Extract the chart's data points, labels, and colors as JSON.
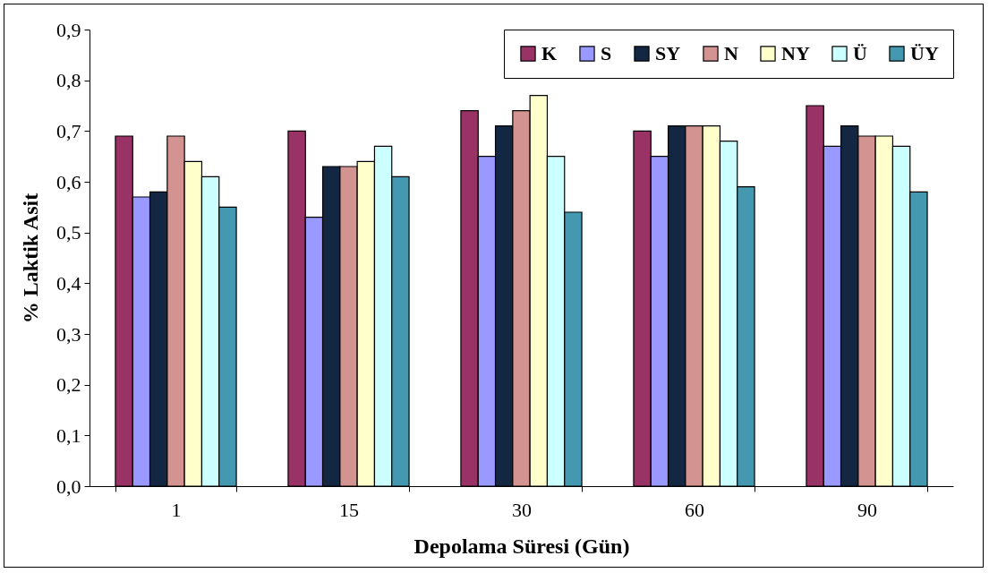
{
  "chart_data": {
    "type": "bar",
    "xlabel": "Depolama Süresi (Gün)",
    "ylabel": "% Laktik Asit",
    "categories": [
      "1",
      "15",
      "30",
      "60",
      "90"
    ],
    "series": [
      {
        "name": "K",
        "color": "#993366",
        "values": [
          0.69,
          0.7,
          0.74,
          0.7,
          0.75
        ]
      },
      {
        "name": "S",
        "color": "#9999ff",
        "values": [
          0.57,
          0.53,
          0.65,
          0.65,
          0.67
        ]
      },
      {
        "name": "SY",
        "color": "#132742",
        "values": [
          0.58,
          0.63,
          0.71,
          0.71,
          0.71
        ]
      },
      {
        "name": "N",
        "color": "#d39390",
        "values": [
          0.69,
          0.63,
          0.74,
          0.71,
          0.69
        ]
      },
      {
        "name": "NY",
        "color": "#ffffcc",
        "values": [
          0.64,
          0.64,
          0.77,
          0.71,
          0.69
        ]
      },
      {
        "name": "Ü",
        "color": "#ccffff",
        "values": [
          0.61,
          0.67,
          0.65,
          0.68,
          0.67
        ]
      },
      {
        "name": "ÜY",
        "color": "#4499b1",
        "values": [
          0.55,
          0.61,
          0.54,
          0.59,
          0.58
        ]
      }
    ],
    "ylim": [
      0,
      0.9
    ],
    "yticks": [
      {
        "value": 0,
        "label": "0,0"
      },
      {
        "value": 0.1,
        "label": "0,1"
      },
      {
        "value": 0.2,
        "label": "0,2"
      },
      {
        "value": 0.3,
        "label": "0,3"
      },
      {
        "value": 0.4,
        "label": "0,4"
      },
      {
        "value": 0.5,
        "label": "0,5"
      },
      {
        "value": 0.6,
        "label": "0,6"
      },
      {
        "value": 0.7,
        "label": "0,7"
      },
      {
        "value": 0.8,
        "label": "0,8"
      },
      {
        "value": 0.9,
        "label": "0,9"
      }
    ],
    "grid": false,
    "legend": "top right"
  }
}
